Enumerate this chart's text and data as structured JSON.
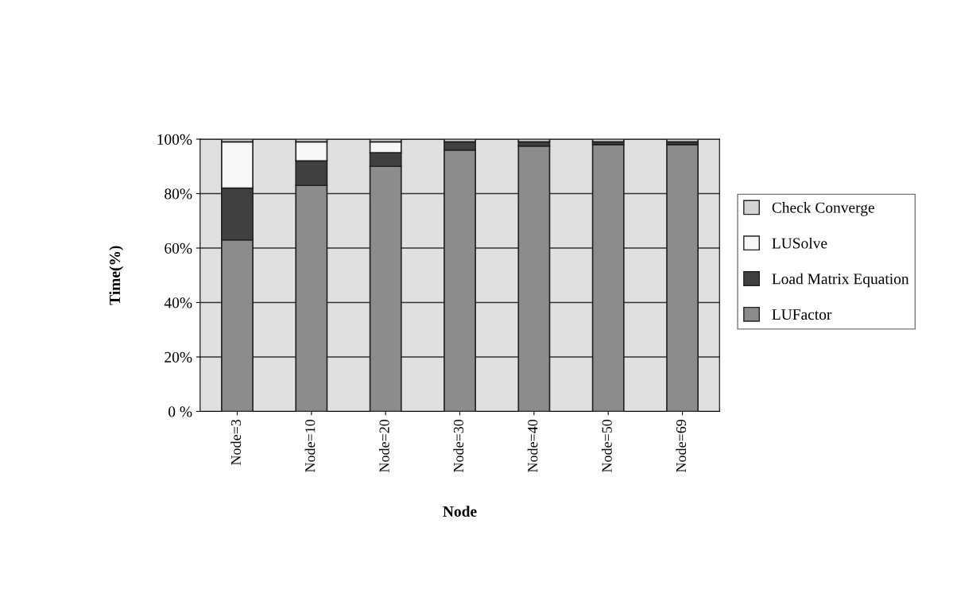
{
  "chart_data": {
    "type": "bar",
    "stacked": true,
    "xlabel": "Node",
    "ylabel": "Time(%)",
    "categories": [
      "Node=3",
      "Node=10",
      "Node=20",
      "Node=30",
      "Node=40",
      "Node=50",
      "Node=69"
    ],
    "series": [
      {
        "name": "LUFactor",
        "color": "#8c8c8c",
        "values": [
          63,
          83,
          90,
          96,
          97.5,
          98,
          98
        ]
      },
      {
        "name": "Load Matrix Equation",
        "color": "#404040",
        "values": [
          19,
          9,
          5,
          3,
          1.5,
          1,
          1
        ]
      },
      {
        "name": "LUSolve",
        "color": "#f7f7f7",
        "values": [
          17,
          7,
          4,
          0,
          0,
          0,
          0
        ]
      },
      {
        "name": "Check Converge",
        "color": "#d4d4d4",
        "values": [
          1,
          1,
          1,
          1,
          1,
          1,
          1
        ]
      }
    ],
    "ylim": [
      0,
      100
    ],
    "yticks": [
      {
        "value": 0,
        "label": "0 %"
      },
      {
        "value": 20,
        "label": "20%"
      },
      {
        "value": 40,
        "label": "40%"
      },
      {
        "value": 60,
        "label": "60%"
      },
      {
        "value": 80,
        "label": "80%"
      },
      {
        "value": 100,
        "label": "100%"
      }
    ],
    "grid": "y",
    "legend": "right"
  }
}
